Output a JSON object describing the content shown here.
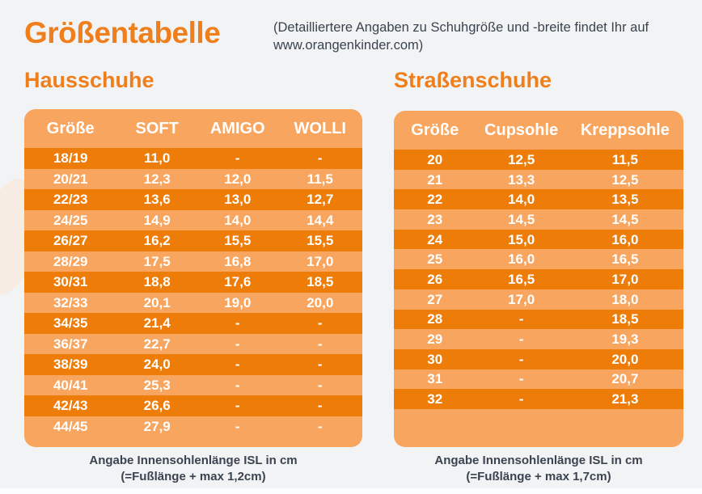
{
  "header": {
    "title": "Größentabelle",
    "subtitle": "(Detailliertere Angaben zu Schuhgröße und -breite findet Ihr auf www.orangenkinder.com)"
  },
  "colors": {
    "accent_orange": "#EF7F1C",
    "table_background_light_orange": "#F8A55F",
    "row_dark_orange": "#ED7D08",
    "table_text": "#FFFFFF",
    "body_text_slate": "#3A4450",
    "page_background": "#F2F3F5"
  },
  "hausschuhe": {
    "heading": "Hausschuhe",
    "columns": [
      "Größe",
      "SOFT",
      "AMIGO",
      "WOLLI"
    ],
    "rows": [
      [
        "18/19",
        "11,0",
        "-",
        "-"
      ],
      [
        "20/21",
        "12,3",
        "12,0",
        "11,5"
      ],
      [
        "22/23",
        "13,6",
        "13,0",
        "12,7"
      ],
      [
        "24/25",
        "14,9",
        "14,0",
        "14,4"
      ],
      [
        "26/27",
        "16,2",
        "15,5",
        "15,5"
      ],
      [
        "28/29",
        "17,5",
        "16,8",
        "17,0"
      ],
      [
        "30/31",
        "18,8",
        "17,6",
        "18,5"
      ],
      [
        "32/33",
        "20,1",
        "19,0",
        "20,0"
      ],
      [
        "34/35",
        "21,4",
        "-",
        "-"
      ],
      [
        "36/37",
        "22,7",
        "-",
        "-"
      ],
      [
        "38/39",
        "24,0",
        "-",
        "-"
      ],
      [
        "40/41",
        "25,3",
        "-",
        "-"
      ],
      [
        "42/43",
        "26,6",
        "-",
        "-"
      ],
      [
        "44/45",
        "27,9",
        "-",
        "-"
      ]
    ],
    "footnote_line1": "Angabe Innensohlenlänge ISL in cm",
    "footnote_line2": "(=Fußlänge + max 1,2cm)"
  },
  "strassenschuhe": {
    "heading": "Straßenschuhe",
    "columns": [
      "Größe",
      "Cupsohle",
      "Kreppsohle"
    ],
    "rows": [
      [
        "20",
        "12,5",
        "11,5"
      ],
      [
        "21",
        "13,3",
        "12,5"
      ],
      [
        "22",
        "14,0",
        "13,5"
      ],
      [
        "23",
        "14,5",
        "14,5"
      ],
      [
        "24",
        "15,0",
        "16,0"
      ],
      [
        "25",
        "16,0",
        "16,5"
      ],
      [
        "26",
        "16,5",
        "17,0"
      ],
      [
        "27",
        "17,0",
        "18,0"
      ],
      [
        "28",
        "-",
        "18,5"
      ],
      [
        "29",
        "-",
        "19,3"
      ],
      [
        "30",
        "-",
        "20,0"
      ],
      [
        "31",
        "-",
        "20,7"
      ],
      [
        "32",
        "-",
        "21,3"
      ]
    ],
    "footnote_line1": "Angabe Innensohlenlänge ISL in cm",
    "footnote_line2": "(=Fußlänge + max 1,7cm)"
  },
  "chart_data": [
    {
      "type": "table",
      "title": "Hausschuhe",
      "columns": [
        "Größe",
        "SOFT",
        "AMIGO",
        "WOLLI"
      ],
      "rows": [
        [
          "18/19",
          "11,0",
          null,
          null
        ],
        [
          "20/21",
          "12,3",
          "12,0",
          "11,5"
        ],
        [
          "22/23",
          "13,6",
          "13,0",
          "12,7"
        ],
        [
          "24/25",
          "14,9",
          "14,0",
          "14,4"
        ],
        [
          "26/27",
          "16,2",
          "15,5",
          "15,5"
        ],
        [
          "28/29",
          "17,5",
          "16,8",
          "17,0"
        ],
        [
          "30/31",
          "18,8",
          "17,6",
          "18,5"
        ],
        [
          "32/33",
          "20,1",
          "19,0",
          "20,0"
        ],
        [
          "34/35",
          "21,4",
          null,
          null
        ],
        [
          "36/37",
          "22,7",
          null,
          null
        ],
        [
          "38/39",
          "24,0",
          null,
          null
        ],
        [
          "40/41",
          "25,3",
          null,
          null
        ],
        [
          "42/43",
          "26,6",
          null,
          null
        ],
        [
          "44/45",
          "27,9",
          null,
          null
        ]
      ],
      "note": "Angabe Innensohlenlänge ISL in cm (=Fußlänge + max 1,2cm)"
    },
    {
      "type": "table",
      "title": "Straßenschuhe",
      "columns": [
        "Größe",
        "Cupsohle",
        "Kreppsohle"
      ],
      "rows": [
        [
          "20",
          "12,5",
          "11,5"
        ],
        [
          "21",
          "13,3",
          "12,5"
        ],
        [
          "22",
          "14,0",
          "13,5"
        ],
        [
          "23",
          "14,5",
          "14,5"
        ],
        [
          "24",
          "15,0",
          "16,0"
        ],
        [
          "25",
          "16,0",
          "16,5"
        ],
        [
          "26",
          "16,5",
          "17,0"
        ],
        [
          "27",
          "17,0",
          "18,0"
        ],
        [
          "28",
          null,
          "18,5"
        ],
        [
          "29",
          null,
          "19,3"
        ],
        [
          "30",
          null,
          "20,0"
        ],
        [
          "31",
          null,
          "20,7"
        ],
        [
          "32",
          null,
          "21,3"
        ]
      ],
      "note": "Angabe Innensohlenlänge ISL in cm (=Fußlänge + max 1,7cm)"
    }
  ]
}
